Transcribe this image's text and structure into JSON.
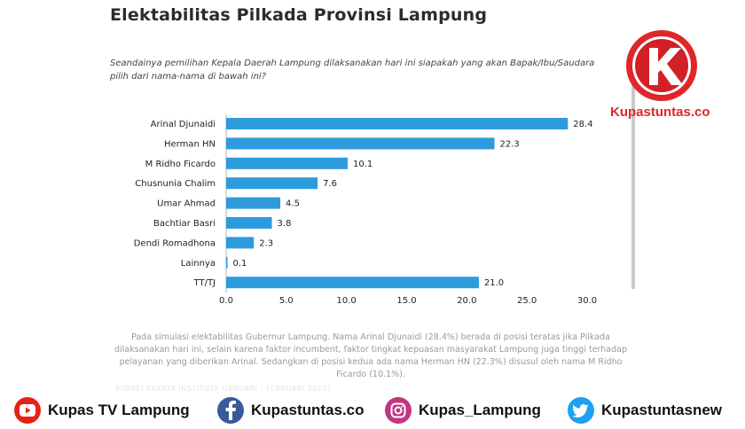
{
  "title": "Elektabilitas Pilkada Provinsi Lampung",
  "question": "Seandainya pemilihan Kepala Daerah Lampung dilaksanakan hari ini siapakah yang akan Bapak/Ibu/Saudara pilih dari nama-nama di bawah ini?",
  "brand": {
    "logo_text": "Kupastuntas.co",
    "logo_lettering": "K",
    "red": "#e0262b",
    "black": "#111111"
  },
  "chart_data": {
    "type": "bar",
    "orientation": "horizontal",
    "categories": [
      "Arinal Djunaidi",
      "Herman HN",
      "M Ridho Ficardo",
      "Chusnunia Chalim",
      "Umar Ahmad",
      "Bachtiar Basri",
      "Dendi Romadhona",
      "Lainnya",
      "TT/TJ"
    ],
    "values": [
      28.4,
      22.3,
      10.1,
      7.6,
      4.5,
      3.8,
      2.3,
      0.1,
      21.0
    ],
    "value_labels": [
      "28.4",
      "22.3",
      "10.1",
      "7.6",
      "4.5",
      "3.8",
      "2.3",
      "0.1",
      "21.0"
    ],
    "xlim": [
      0,
      30
    ],
    "ticks": [
      0,
      5,
      10,
      15,
      20,
      25,
      30
    ],
    "tick_labels": [
      "0.0",
      "5.0",
      "10.0",
      "15.0",
      "20.0",
      "25.0",
      "30.0"
    ],
    "bar_color": "#2e9bdc",
    "grid": false,
    "title": "",
    "xlabel": "",
    "ylabel": ""
  },
  "note": "Pada simulasi elektabilitas Gubernur Lampung. Nama Arinal Djunaidi (28.4%) berada di posisi teratas jika Pilkada dilaksanakan hari ini, selain karena faktor incumbent, faktor tingkat kepuasan masyarakat Lampung juga tinggi terhadap pelayanan yang diberikan Arinal.  Sedangkan di posisi kedua ada nama Herman HN (22.3%) disusul oleh nama M Ridho Ficardo (10.1%).",
  "faint_text": "SURVEI RAKATA INSTITUTE (JANUARI - FEBRUARI 2022)",
  "social": [
    {
      "icon": "youtube-icon",
      "label": "Kupas TV Lampung",
      "color": "#e62117"
    },
    {
      "icon": "facebook-icon",
      "label": "Kupastuntas.co",
      "color": "#3b5998"
    },
    {
      "icon": "instagram-icon",
      "label": "Kupas_Lampung",
      "color": "#c13584"
    },
    {
      "icon": "twitter-icon",
      "label": "Kupastuntasnew",
      "color": "#1da1f2"
    }
  ]
}
